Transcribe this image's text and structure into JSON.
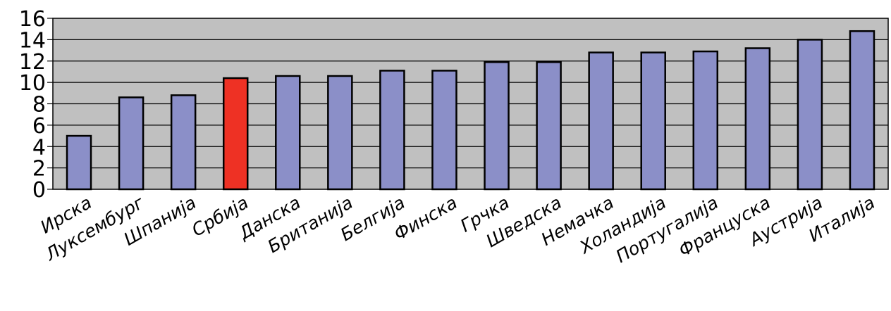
{
  "chart_data": {
    "type": "bar",
    "title": "",
    "xlabel": "",
    "ylabel": "",
    "ylim": [
      0,
      16
    ],
    "yticks": [
      0,
      2,
      4,
      6,
      8,
      10,
      12,
      14,
      16
    ],
    "grid": "horizontal",
    "legend": "none",
    "categories": [
      "Ирска",
      "Луксембург",
      "Шпанија",
      "Србија",
      "Данска",
      "Британија",
      "Белгија",
      "Финска",
      "Грчка",
      "Шведска",
      "Немачка",
      "Холандија",
      "Португалија",
      "Француска",
      "Аустрија",
      "Италија"
    ],
    "values": [
      5.0,
      8.6,
      8.8,
      10.4,
      10.6,
      10.6,
      11.1,
      11.1,
      11.9,
      11.9,
      12.8,
      12.8,
      12.9,
      13.2,
      14.0,
      14.8
    ],
    "highlight_category": "Србија",
    "colors": {
      "bar": "#8b8fc8",
      "highlight": "#ee3124",
      "plot_background": "#c0c0c0",
      "outline": "#000000"
    }
  }
}
